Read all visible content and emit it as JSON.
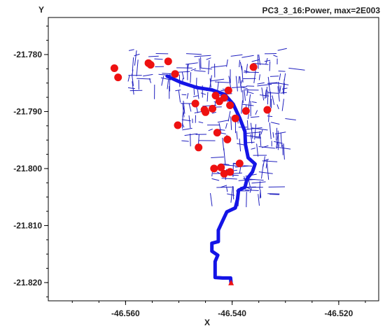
{
  "chart_data": {
    "type": "scatter",
    "title": "PC3_3_16:Power, max=2E003",
    "xlabel": "X",
    "ylabel": "Y",
    "xlim": [
      -46.5745,
      -46.5125
    ],
    "ylim": [
      -21.8232,
      -21.7735
    ],
    "x_ticks": [
      "-46.560",
      "-46.540",
      "-46.520"
    ],
    "x_tick_values": [
      -46.56,
      -46.54,
      -46.52
    ],
    "y_ticks": [
      "-21.780",
      "-21.790",
      "-21.800",
      "-21.810",
      "-21.820"
    ],
    "y_tick_values": [
      -21.78,
      -21.79,
      -21.8,
      -21.81,
      -21.82
    ],
    "grid": false,
    "colors": {
      "network": "#1f1fbf",
      "feeder": "#1414e6",
      "loads": "#ee1111",
      "source": "#ee1111"
    },
    "source_point": {
      "x": -46.5402,
      "y": -21.8201
    },
    "feeder_path": [
      {
        "x": -46.5402,
        "y": -21.8201
      },
      {
        "x": -46.5403,
        "y": -21.8192
      },
      {
        "x": -46.5418,
        "y": -21.8192
      },
      {
        "x": -46.5432,
        "y": -21.8191
      },
      {
        "x": -46.5432,
        "y": -21.8178
      },
      {
        "x": -46.5432,
        "y": -21.8163
      },
      {
        "x": -46.5427,
        "y": -21.8152
      },
      {
        "x": -46.5438,
        "y": -21.8145
      },
      {
        "x": -46.5438,
        "y": -21.8131
      },
      {
        "x": -46.5426,
        "y": -21.8128
      },
      {
        "x": -46.5426,
        "y": -21.8108
      },
      {
        "x": -46.5418,
        "y": -21.8092
      },
      {
        "x": -46.541,
        "y": -21.8076
      },
      {
        "x": -46.5394,
        "y": -21.8069
      },
      {
        "x": -46.539,
        "y": -21.8054
      },
      {
        "x": -46.5388,
        "y": -21.8038
      },
      {
        "x": -46.5376,
        "y": -21.8033
      },
      {
        "x": -46.5372,
        "y": -21.8018
      },
      {
        "x": -46.5362,
        "y": -21.8006
      },
      {
        "x": -46.5357,
        "y": -21.7992
      },
      {
        "x": -46.537,
        "y": -21.7981
      },
      {
        "x": -46.5375,
        "y": -21.7958
      },
      {
        "x": -46.5376,
        "y": -21.7935
      },
      {
        "x": -46.5386,
        "y": -21.7911
      },
      {
        "x": -46.5398,
        "y": -21.7887
      },
      {
        "x": -46.5414,
        "y": -21.787
      },
      {
        "x": -46.5438,
        "y": -21.7862
      },
      {
        "x": -46.5466,
        "y": -21.7858
      },
      {
        "x": -46.5496,
        "y": -21.7849
      },
      {
        "x": -46.5522,
        "y": -21.7838
      }
    ],
    "loads": [
      {
        "x": -46.5621,
        "y": -21.7824
      },
      {
        "x": -46.5614,
        "y": -21.784
      },
      {
        "x": -46.5557,
        "y": -21.7815
      },
      {
        "x": -46.5553,
        "y": -21.7818
      },
      {
        "x": -46.552,
        "y": -21.7812
      },
      {
        "x": -46.5507,
        "y": -21.7834
      },
      {
        "x": -46.536,
        "y": -21.7822
      },
      {
        "x": -46.5469,
        "y": -21.7886
      },
      {
        "x": -46.5452,
        "y": -21.7897
      },
      {
        "x": -46.545,
        "y": -21.7901
      },
      {
        "x": -46.5437,
        "y": -21.7895
      },
      {
        "x": -46.5431,
        "y": -21.7872
      },
      {
        "x": -46.5424,
        "y": -21.7882
      },
      {
        "x": -46.5415,
        "y": -21.7876
      },
      {
        "x": -46.5407,
        "y": -21.7863
      },
      {
        "x": -46.5404,
        "y": -21.7889
      },
      {
        "x": -46.5394,
        "y": -21.7912
      },
      {
        "x": -46.5374,
        "y": -21.7899
      },
      {
        "x": -46.5334,
        "y": -21.7897
      },
      {
        "x": -46.5502,
        "y": -21.7924
      },
      {
        "x": -46.5428,
        "y": -21.7937
      },
      {
        "x": -46.5409,
        "y": -21.7949
      },
      {
        "x": -46.5463,
        "y": -21.7963
      },
      {
        "x": -46.5434,
        "y": -21.8
      },
      {
        "x": -46.5421,
        "y": -21.7998
      },
      {
        "x": -46.5415,
        "y": -21.8009
      },
      {
        "x": -46.5404,
        "y": -21.8006
      },
      {
        "x": -46.5386,
        "y": -21.7991
      }
    ]
  }
}
